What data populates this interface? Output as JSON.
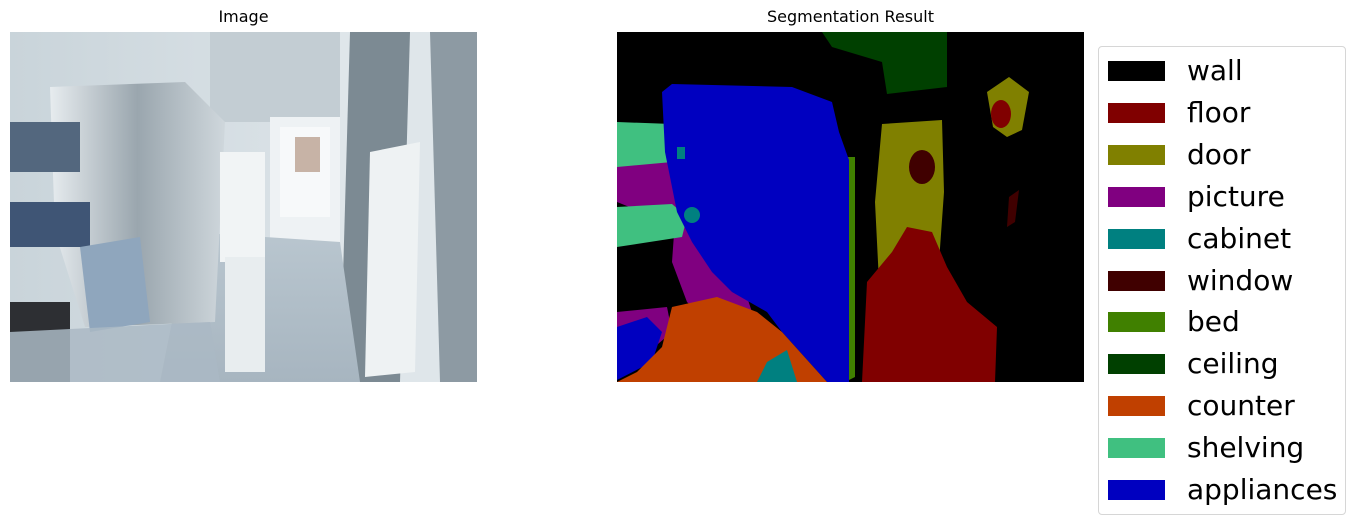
{
  "titles": {
    "left": "Image",
    "right": "Segmentation Result"
  },
  "chart_data": {
    "type": "segmentation",
    "legend": [
      {
        "label": "wall",
        "color": "#000000"
      },
      {
        "label": "floor",
        "color": "#800000"
      },
      {
        "label": "door",
        "color": "#808000"
      },
      {
        "label": "picture",
        "color": "#800080"
      },
      {
        "label": "cabinet",
        "color": "#008080"
      },
      {
        "label": "window",
        "color": "#400000"
      },
      {
        "label": "bed",
        "color": "#408000"
      },
      {
        "label": "ceiling",
        "color": "#004000"
      },
      {
        "label": "counter",
        "color": "#c04000"
      },
      {
        "label": "shelving",
        "color": "#40c080"
      },
      {
        "label": "appliances",
        "color": "#0000c0"
      }
    ]
  }
}
